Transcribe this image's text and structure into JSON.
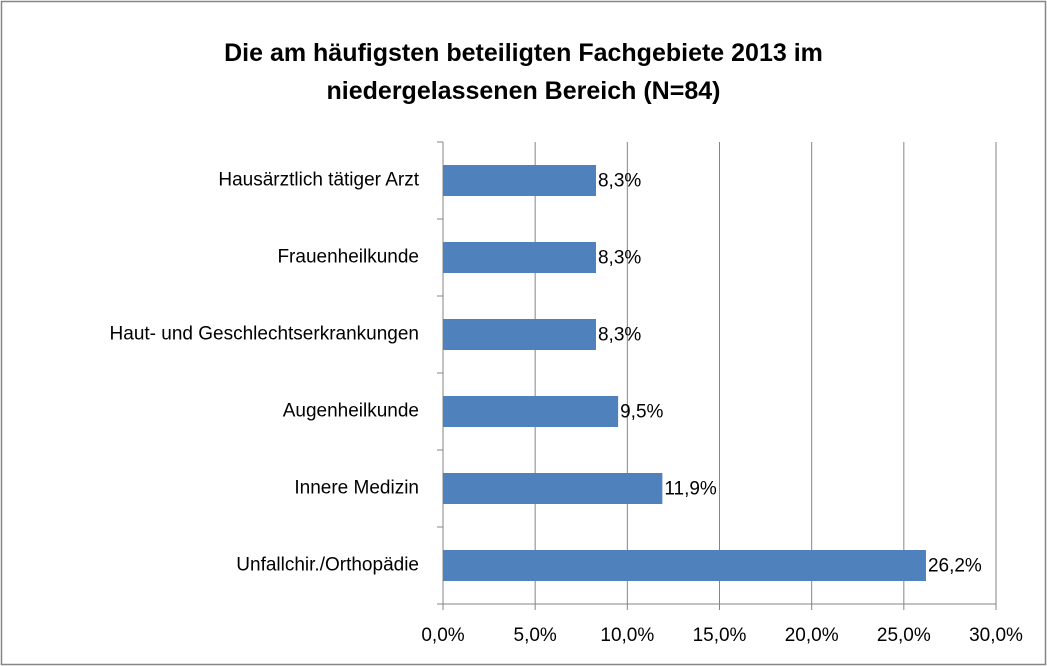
{
  "chart_data": {
    "type": "hbar",
    "title": "Die am häufigsten beteiligten Fachgebiete 2013 im niedergelassenen Bereich (N=84)",
    "categories": [
      "Hausärztlich tätiger Arzt",
      "Frauenheilkunde",
      "Haut- und Geschlechtserkrankungen",
      "Augenheilkunde",
      "Innere Medizin",
      "Unfallchir./Orthopädie"
    ],
    "values": [
      8.3,
      8.3,
      8.3,
      9.5,
      11.9,
      26.2
    ],
    "value_labels": [
      "8,3%",
      "8,3%",
      "8,3%",
      "9,5%",
      "11,9%",
      "26,2%"
    ],
    "color": "#4f81bd",
    "xlim": [
      0,
      30
    ],
    "xticks": [
      {
        "value": 0,
        "label": "0,0%"
      },
      {
        "value": 5,
        "label": "5,0%"
      },
      {
        "value": 10,
        "label": "10,0%"
      },
      {
        "value": 15,
        "label": "15,0%"
      },
      {
        "value": 20,
        "label": "20,0%"
      },
      {
        "value": 25,
        "label": "25,0%"
      },
      {
        "value": 30,
        "label": "30,0%"
      }
    ],
    "grid": true
  }
}
